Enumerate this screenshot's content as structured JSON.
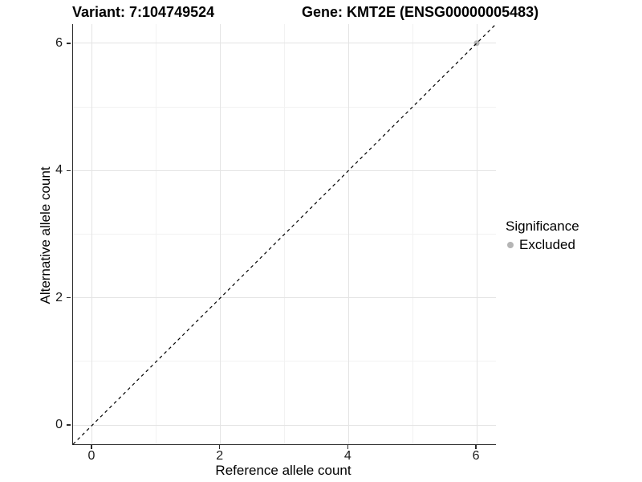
{
  "header": {
    "title_left": "Variant: 7:104749524",
    "title_right": "Gene: KMT2E (ENSG00000005483)"
  },
  "legend": {
    "title": "Significance",
    "items": [
      {
        "label": "Excluded",
        "color": "#b5b5b5"
      }
    ]
  },
  "colors": {
    "background": "#ffffff",
    "grid_major": "#e4e4e4",
    "grid_minor": "#f2f2f2",
    "axis_line": "#2b2b2b",
    "tick_label": "#1a1a1a",
    "title_text": "#000000"
  },
  "chart_data": {
    "type": "scatter",
    "title": "Variant: 7:104749524  Gene: KMT2E (ENSG00000005483)",
    "xlabel": "Reference allele count",
    "ylabel": "Alternative allele count",
    "xlim": [
      -0.3,
      6.3
    ],
    "ylim": [
      -0.3,
      6.3
    ],
    "x_major_ticks": [
      0,
      2,
      4,
      6
    ],
    "y_major_ticks": [
      0,
      2,
      4,
      6
    ],
    "x_minor_gridlines": [
      1,
      3,
      5
    ],
    "y_minor_gridlines": [
      1,
      3,
      5
    ],
    "grid": true,
    "legend_position": "right",
    "reference_line": {
      "slope": 1,
      "intercept": 0,
      "style": "dashed",
      "color": "#000000"
    },
    "series": [
      {
        "name": "Excluded",
        "color": "#b5b5b5",
        "points": [
          {
            "x": 6,
            "y": 6
          }
        ]
      }
    ]
  }
}
